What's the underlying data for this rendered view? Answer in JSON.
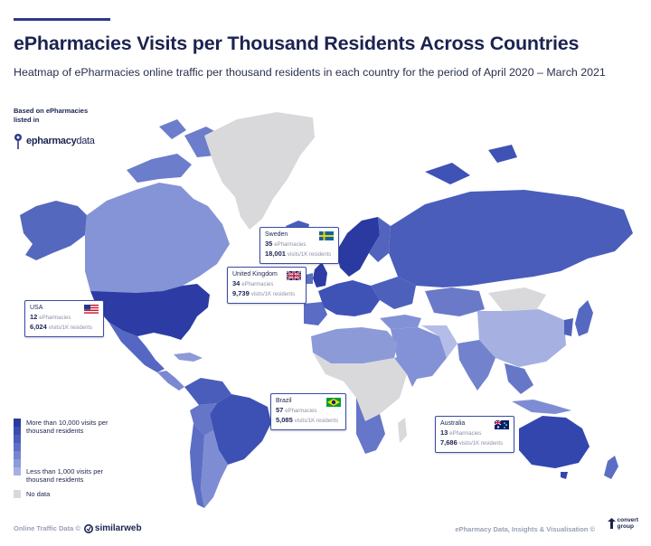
{
  "header": {
    "title": "ePharmacies Visits per Thousand Residents Across Countries",
    "subtitle": "Heatmap of ePharmacies online traffic per thousand residents in each country for the period of April 2020 – March 2021"
  },
  "source_note": {
    "based_on_line1": "Based on ePharmacies",
    "based_on_line2": "listed in",
    "brand_main": "epharmacy",
    "brand_light": "data"
  },
  "callouts": [
    {
      "id": "usa",
      "country": "USA",
      "epharmacies": "12",
      "epharmacies_label": "ePharmacies",
      "visits": "6,024",
      "visits_label": "visits/1K residents",
      "flag": "us-flag-icon"
    },
    {
      "id": "sweden",
      "country": "Sweden",
      "epharmacies": "35",
      "epharmacies_label": "ePharmacies",
      "visits": "18,001",
      "visits_label": "visits/1K residents",
      "flag": "sweden-flag-icon"
    },
    {
      "id": "uk",
      "country": "United Kingdom",
      "epharmacies": "34",
      "epharmacies_label": "ePharmacies",
      "visits": "9,739",
      "visits_label": "visits/1K residents",
      "flag": "uk-flag-icon"
    },
    {
      "id": "brazil",
      "country": "Brazil",
      "epharmacies": "57",
      "epharmacies_label": "ePharmacies",
      "visits": "5,085",
      "visits_label": "visits/1K residents",
      "flag": "brazil-flag-icon"
    },
    {
      "id": "australia",
      "country": "Australia",
      "epharmacies": "13",
      "epharmacies_label": "ePharmacies",
      "visits": "7,686",
      "visits_label": "visits/1K residents",
      "flag": "australia-flag-icon"
    }
  ],
  "legend": {
    "high_line1": "More than 10,000 visits per",
    "high_line2": "thousand residents",
    "low_line1": "Less than 1,000 visits per",
    "low_line2": "thousand residents",
    "no_data": "No data",
    "scale_colors": [
      "#2a3aa0",
      "#3a4cb0",
      "#4a5dbb",
      "#5e70c5",
      "#7585cf",
      "#8c9ad8",
      "#a4b0e2"
    ],
    "no_data_color": "#d9d9dc"
  },
  "footer": {
    "left_label": "Online Traffic Data ©",
    "left_brand": "similarweb",
    "right_label": "ePharmacy Data, Insights & Visualisation ©",
    "right_brand_line1": "convert",
    "right_brand_line2": "group"
  }
}
